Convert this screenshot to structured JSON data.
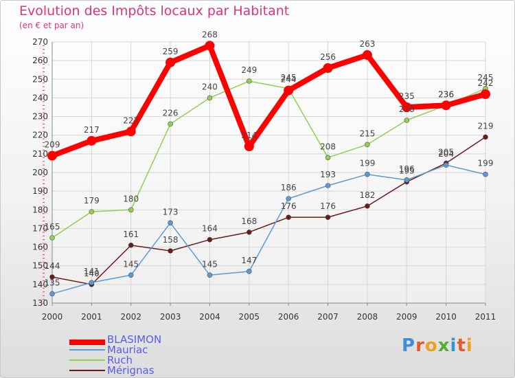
{
  "title": "Evolution des Impôts locaux par Habitant",
  "subtitle": "(en € et par an)",
  "logo": "Proxiti",
  "chart_data": {
    "type": "line",
    "title": "Evolution des Impôts locaux par Habitant",
    "subtitle": "(en € et par an)",
    "xlabel": "",
    "ylabel": "",
    "x": [
      "2000",
      "2001",
      "2002",
      "2003",
      "2004",
      "2005",
      "2006",
      "2007",
      "2008",
      "2009",
      "2010",
      "2011"
    ],
    "ylim": [
      130,
      270
    ],
    "yticks": [
      130,
      140,
      150,
      160,
      170,
      180,
      190,
      200,
      210,
      220,
      230,
      240,
      250,
      260,
      270
    ],
    "grid": true,
    "legend_position": "bottom-left",
    "series": [
      {
        "name": "BLASIMON",
        "color": "#ff0000",
        "values": [
          209,
          217,
          222,
          259,
          268,
          214,
          244,
          256,
          263,
          235,
          236,
          242
        ]
      },
      {
        "name": "Mauriac",
        "color": "#5b9bd5",
        "values": [
          135,
          141,
          145,
          173,
          145,
          147,
          186,
          193,
          199,
          196,
          204,
          199
        ]
      },
      {
        "name": "Ruch",
        "color": "#8fd14f",
        "values": [
          165,
          179,
          180,
          226,
          240,
          249,
          245,
          208,
          215,
          228,
          236,
          245
        ]
      },
      {
        "name": "Mérignas",
        "color": "#6b1a1a",
        "values": [
          144,
          140,
          161,
          158,
          164,
          168,
          176,
          176,
          182,
          195,
          205,
          219
        ]
      }
    ]
  }
}
